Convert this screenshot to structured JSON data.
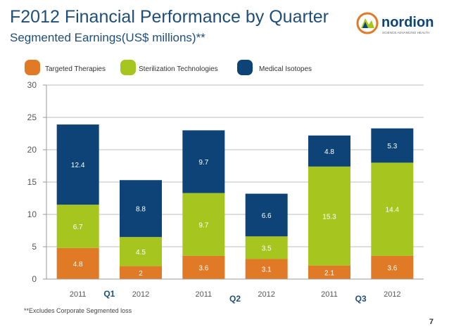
{
  "title": "F2012 Financial Performance by Quarter",
  "subtitle": "Segmented Earnings(US$ millions)**",
  "logo": {
    "text": "nordion",
    "tagline": "SCIENCE ADVANCING HEALTH"
  },
  "footnote": "**Excludes Corporate Segmented loss",
  "page_number": "7",
  "colors": {
    "targeted": "#e07a26",
    "sterilization": "#a6c51f",
    "isotopes": "#0d4377",
    "title": "#1f4e79"
  },
  "chart_data": {
    "type": "bar",
    "stacked": true,
    "categories": [
      "2011",
      "2012",
      "2011",
      "2012",
      "2011",
      "2012"
    ],
    "groups": [
      {
        "label": "Q1",
        "categories": [
          "2011",
          "2012"
        ]
      },
      {
        "label": "Q2",
        "categories": [
          "2011",
          "2012"
        ]
      },
      {
        "label": "Q3",
        "categories": [
          "2011",
          "2012"
        ]
      }
    ],
    "series": [
      {
        "name": "Targeted Therapies",
        "color": "#e07a26",
        "values": [
          4.8,
          2,
          3.6,
          3.1,
          2.1,
          3.6
        ]
      },
      {
        "name": "Sterilization Technologies",
        "color": "#a6c51f",
        "values": [
          6.7,
          4.5,
          9.7,
          3.5,
          15.3,
          14.4
        ]
      },
      {
        "name": "Medical Isotopes",
        "color": "#0d4377",
        "values": [
          12.4,
          8.8,
          9.7,
          6.6,
          4.8,
          5.3
        ]
      }
    ],
    "ylim": [
      0,
      30
    ],
    "yticks": [
      0,
      5,
      10,
      15,
      20,
      25,
      30
    ],
    "grid": true,
    "legend": "top-left"
  }
}
